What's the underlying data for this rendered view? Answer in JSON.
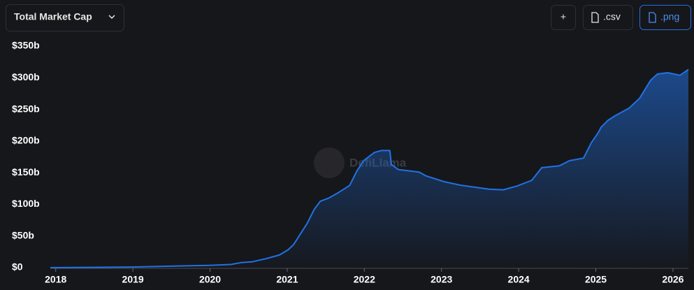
{
  "controls": {
    "dropdown": "Total Market Cap",
    "buttons": [
      "+",
      ".csv",
      ".png"
    ]
  },
  "chart_data": {
    "type": "area",
    "watermark": "DefiLlama",
    "color": "#2172e5",
    "grid": false,
    "x": [
      2017.93,
      2019.0,
      2019.54,
      2019.99,
      2020.27,
      2020.4,
      2020.54,
      2020.72,
      2020.9,
      2021.01,
      2021.08,
      2021.17,
      2021.26,
      2021.35,
      2021.43,
      2021.54,
      2021.67,
      2021.81,
      2021.9,
      2021.99,
      2022.13,
      2022.22,
      2022.33,
      2022.35,
      2022.44,
      2022.71,
      2022.8,
      2023.03,
      2023.26,
      2023.62,
      2023.8,
      2023.98,
      2024.17,
      2024.3,
      2024.53,
      2024.66,
      2024.84,
      2024.94,
      2025.03,
      2025.07,
      2025.16,
      2025.25,
      2025.43,
      2025.57,
      2025.71,
      2025.8,
      2025.93,
      2026.09,
      2026.2
    ],
    "values": [
      0,
      1,
      2.5,
      3.5,
      5,
      8,
      9,
      14,
      20,
      28,
      36,
      53,
      70,
      92,
      105,
      110,
      119,
      130,
      152,
      169,
      182,
      185,
      185,
      163,
      155,
      151,
      145,
      136,
      130,
      124,
      123,
      129,
      138,
      158,
      161,
      169,
      173,
      197,
      213,
      222,
      233,
      240,
      252,
      268,
      296,
      306,
      308,
      304,
      313
    ],
    "xlim": [
      2017.93,
      2026.2
    ],
    "xticks": [
      2018,
      2019,
      2020,
      2021,
      2022,
      2023,
      2024,
      2025,
      2026
    ],
    "ylim": [
      0,
      350
    ],
    "yticks": [
      {
        "value": 0,
        "label": "$0"
      },
      {
        "value": 50,
        "label": "$50b"
      },
      {
        "value": 100,
        "label": "$100b"
      },
      {
        "value": 150,
        "label": "$150b"
      },
      {
        "value": 200,
        "label": "$200b"
      },
      {
        "value": 250,
        "label": "$250b"
      },
      {
        "value": 300,
        "label": "$300b"
      },
      {
        "value": 350,
        "label": "$350b"
      }
    ]
  }
}
